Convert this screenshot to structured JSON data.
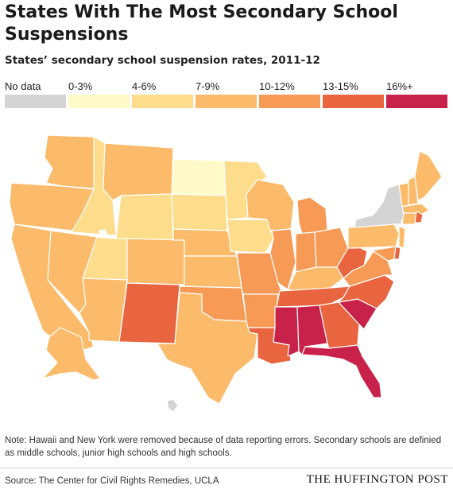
{
  "title": "States With The Most Secondary School Suspensions",
  "subtitle": "States’ secondary school suspension rates, 2011-12",
  "legend": [
    {
      "label": "No data",
      "color": "#d4d4d4"
    },
    {
      "label": "0-3%",
      "color": "#fffac8"
    },
    {
      "label": "4-6%",
      "color": "#fddd8c"
    },
    {
      "label": "7-9%",
      "color": "#fbbb6a"
    },
    {
      "label": "10-12%",
      "color": "#f79a56"
    },
    {
      "label": "13-15%",
      "color": "#e8653f"
    },
    {
      "label": "16%+",
      "color": "#c8224a"
    }
  ],
  "map": {
    "states": {
      "WA": "7-9%",
      "OR": "7-9%",
      "CA": "7-9%",
      "NV": "7-9%",
      "ID": "4-6%",
      "MT": "7-9%",
      "WY": "4-6%",
      "UT": "4-6%",
      "AZ": "7-9%",
      "CO": "7-9%",
      "NM": "13-15%",
      "ND": "0-3%",
      "SD": "4-6%",
      "NE": "7-9%",
      "KS": "7-9%",
      "OK": "10-12%",
      "TX": "7-9%",
      "MN": "4-6%",
      "IA": "4-6%",
      "MO": "10-12%",
      "AR": "10-12%",
      "LA": "13-15%",
      "WI": "7-9%",
      "IL": "10-12%",
      "MI": "10-12%",
      "IN": "10-12%",
      "OH": "10-12%",
      "KY": "7-9%",
      "TN": "13-15%",
      "MS": "16%+",
      "AL": "16%+",
      "GA": "13-15%",
      "FL": "16%+",
      "SC": "16%+",
      "NC": "13-15%",
      "VA": "10-12%",
      "WV": "13-15%",
      "PA": "7-9%",
      "NY": "No data",
      "VT": "7-9%",
      "NH": "7-9%",
      "ME": "7-9%",
      "MA": "7-9%",
      "CT": "7-9%",
      "RI": "13-15%",
      "NJ": "7-9%",
      "DE": "13-15%",
      "MD": "10-12%",
      "AK": "7-9%",
      "HI": "No data"
    }
  },
  "note": "Note: Hawaii and New York were removed because of data reporting errors. Secondary schools are definied as middle schools, junior high schools and high schools.",
  "source": "Source: The Center for Civil Rights Remedies, UCLA",
  "logo": "THE HUFFINGTON POST"
}
